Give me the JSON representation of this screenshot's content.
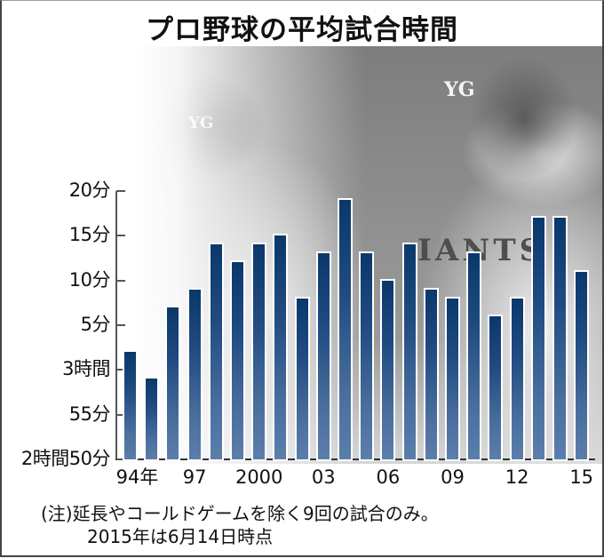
{
  "title": "プロ野球の平均試合時間",
  "y_axis": {
    "ticks": [
      {
        "label": "20分",
        "minutes": 200
      },
      {
        "label": "15分",
        "minutes": 195
      },
      {
        "label": "10分",
        "minutes": 190
      },
      {
        "label": "5分",
        "minutes": 185
      },
      {
        "label": "3時間",
        "minutes": 180
      },
      {
        "label": "55分",
        "minutes": 175
      },
      {
        "label": "2時間50分",
        "minutes": 170
      }
    ]
  },
  "x_axis": {
    "labels": [
      {
        "label": "94年",
        "index": 0
      },
      {
        "label": "97",
        "index": 3
      },
      {
        "label": "2000",
        "index": 6
      },
      {
        "label": "03",
        "index": 9
      },
      {
        "label": "06",
        "index": 12
      },
      {
        "label": "09",
        "index": 15
      },
      {
        "label": "12",
        "index": 18
      },
      {
        "label": "15",
        "index": 21
      }
    ]
  },
  "notes": {
    "line1": "(注)延長やコールドゲームを除く9回の試合のみ。",
    "line2": "2015年は6月14日時点"
  },
  "photo": {
    "cap_logo": "YG",
    "jersey_text": "IANTS",
    "description": "Yomiuri Giants players (grayscale photo background)"
  },
  "colors": {
    "bar_top": "#0b386b",
    "bar_bottom": "#5b7eab",
    "axis": "#555555",
    "text": "#111111"
  },
  "chart_data": {
    "type": "bar",
    "title": "プロ野球の平均試合時間",
    "xlabel": "",
    "ylabel": "",
    "categories": [
      "1994",
      "1995",
      "1996",
      "1997",
      "1998",
      "1999",
      "2000",
      "2001",
      "2002",
      "2003",
      "2004",
      "2005",
      "2006",
      "2007",
      "2008",
      "2009",
      "2010",
      "2011",
      "2012",
      "2013",
      "2014",
      "2015"
    ],
    "values_minutes": [
      182,
      179,
      187,
      189,
      194,
      192,
      194,
      195,
      188,
      193,
      199,
      193,
      190,
      194,
      189,
      188,
      193,
      186,
      188,
      197,
      197,
      191
    ],
    "values_display": [
      "3:02",
      "2:59",
      "3:07",
      "3:09",
      "3:14",
      "3:12",
      "3:14",
      "3:15",
      "3:08",
      "3:13",
      "3:19",
      "3:13",
      "3:10",
      "3:14",
      "3:09",
      "3:08",
      "3:13",
      "3:06",
      "3:08",
      "3:17",
      "3:17",
      "3:11"
    ],
    "ylim_minutes": [
      170,
      200
    ],
    "ytick_labels": [
      "2時間50分",
      "55分",
      "3時間",
      "5分",
      "10分",
      "15分",
      "20分"
    ],
    "xtick_labels": [
      "94年",
      "97",
      "2000",
      "03",
      "06",
      "09",
      "12",
      "15"
    ],
    "grid": false,
    "legend": null,
    "annotations": [
      "(注)延長やコールドゲームを除く9回の試合のみ。",
      "2015年は6月14日時点"
    ]
  }
}
